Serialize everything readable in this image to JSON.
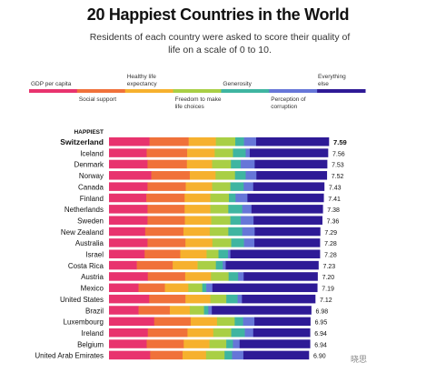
{
  "chart_data": {
    "type": "bar",
    "stacked": true,
    "title": "20 Happiest Countries in the World",
    "subtitle": "Residents of each country were asked to score their quality of life on a scale of 0 to 10.",
    "highlight_label": "HAPPIEST",
    "legend_position": "top",
    "components": [
      {
        "name": "GDP per capita",
        "color": "#e8336e"
      },
      {
        "name": "Social support",
        "color": "#f0713a"
      },
      {
        "name": "Healthy life expectancy",
        "color": "#f6b12e"
      },
      {
        "name": "Freedom to make life choices",
        "color": "#a9cf45"
      },
      {
        "name": "Generosity",
        "color": "#3fb5a1"
      },
      {
        "name": "Perception of corruption",
        "color": "#6676d8"
      },
      {
        "name": "Everything else",
        "color": "#2e1a96"
      }
    ],
    "categories": [
      "Switzerland",
      "Iceland",
      "Denmark",
      "Norway",
      "Canada",
      "Finland",
      "Netherlands",
      "Sweden",
      "New Zealand",
      "Australia",
      "Israel",
      "Costa Rica",
      "Austria",
      "Mexico",
      "United States",
      "Brazil",
      "Luxembourg",
      "Ireland",
      "Belgium",
      "United Arab Emirates"
    ],
    "totals": [
      7.59,
      7.56,
      7.53,
      7.52,
      7.43,
      7.41,
      7.38,
      7.36,
      7.29,
      7.28,
      7.28,
      7.23,
      7.2,
      7.19,
      7.12,
      6.98,
      6.95,
      6.94,
      6.94,
      6.9
    ],
    "total_labels": [
      "7.59",
      "7.56",
      "7.53",
      "7.52",
      "7.43",
      "7.41",
      "7.38",
      "7.36",
      "7.29",
      "7.28",
      "7.28",
      "7.23",
      "7.20",
      "7.19",
      "7.12",
      "6.98",
      "6.95",
      "6.94",
      "6.94",
      "6.90"
    ],
    "series_order": [
      "GDP per capita",
      "Social support",
      "Healthy life expectancy",
      "Freedom to make life choices",
      "Generosity",
      "Perception of corruption",
      "Everything else"
    ],
    "segments": [
      [
        1.4,
        1.35,
        0.94,
        0.67,
        0.3,
        0.42,
        2.51
      ],
      [
        1.3,
        1.4,
        0.95,
        0.63,
        0.44,
        0.14,
        2.7
      ],
      [
        1.33,
        1.36,
        0.87,
        0.65,
        0.34,
        0.48,
        2.5
      ],
      [
        1.46,
        1.33,
        0.89,
        0.67,
        0.37,
        0.37,
        2.43
      ],
      [
        1.33,
        1.32,
        0.91,
        0.63,
        0.46,
        0.33,
        2.45
      ],
      [
        1.29,
        1.32,
        0.89,
        0.64,
        0.23,
        0.41,
        2.63
      ],
      [
        1.33,
        1.28,
        0.89,
        0.62,
        0.48,
        0.32,
        2.46
      ],
      [
        1.33,
        1.29,
        0.91,
        0.66,
        0.36,
        0.44,
        2.37
      ],
      [
        1.25,
        1.32,
        0.91,
        0.64,
        0.48,
        0.43,
        2.26
      ],
      [
        1.33,
        1.31,
        0.93,
        0.65,
        0.44,
        0.36,
        2.26
      ],
      [
        1.23,
        1.23,
        0.91,
        0.41,
        0.33,
        0.08,
        3.09
      ],
      [
        0.96,
        1.24,
        0.86,
        0.63,
        0.24,
        0.1,
        3.2
      ],
      [
        1.34,
        1.29,
        0.89,
        0.61,
        0.33,
        0.19,
        2.55
      ],
      [
        1.02,
        0.91,
        0.81,
        0.48,
        0.14,
        0.21,
        3.62
      ],
      [
        1.39,
        1.25,
        0.86,
        0.55,
        0.39,
        0.15,
        2.53
      ],
      [
        1.02,
        1.08,
        0.69,
        0.49,
        0.15,
        0.12,
        3.43
      ],
      [
        1.56,
        1.26,
        0.91,
        0.61,
        0.29,
        0.39,
        1.93
      ],
      [
        1.34,
        1.37,
        0.89,
        0.62,
        0.47,
        0.29,
        1.96
      ],
      [
        1.3,
        1.28,
        0.89,
        0.58,
        0.23,
        0.23,
        2.43
      ],
      [
        1.42,
        1.12,
        0.81,
        0.64,
        0.26,
        0.39,
        2.26
      ]
    ],
    "xlim": [
      0,
      7.59
    ]
  },
  "watermark": "晓思"
}
